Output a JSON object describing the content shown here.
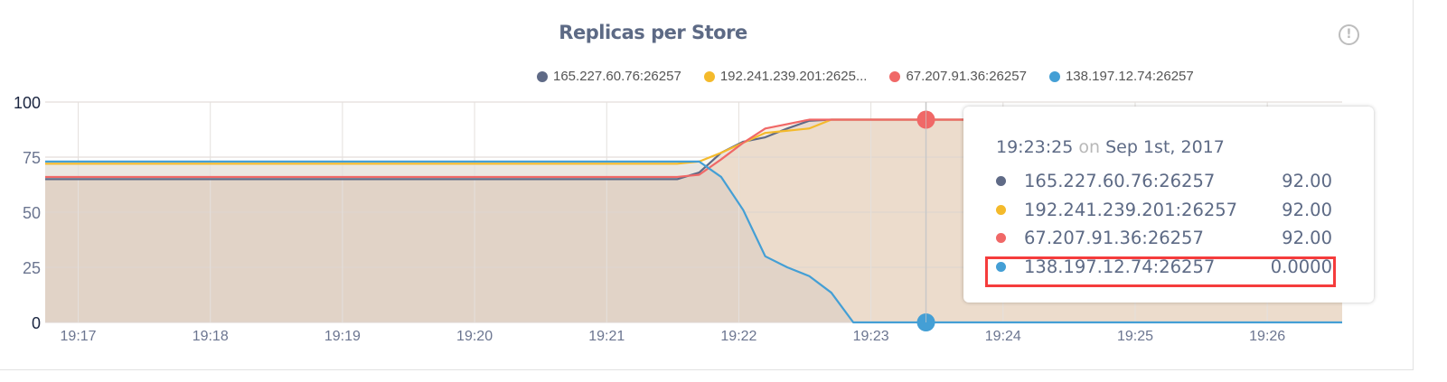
{
  "chart_data": {
    "type": "area",
    "title": "Replicas per Store",
    "xlabel": "",
    "ylabel": "",
    "xlim": [
      "19:16:45",
      "19:26:34"
    ],
    "ylim": [
      0,
      100
    ],
    "yticks": [
      "0",
      "25",
      "50",
      "75",
      "100"
    ],
    "xticks": [
      "19:17",
      "19:18",
      "19:19",
      "19:20",
      "19:21",
      "19:22",
      "19:23",
      "19:24",
      "19:25",
      "19:26"
    ],
    "grid": true,
    "legend_position": "top-right",
    "x": [
      "19:16:45",
      "19:21:32",
      "19:21:42",
      "19:21:52",
      "19:22:02",
      "19:22:12",
      "19:22:22",
      "19:22:32",
      "19:22:42",
      "19:22:52",
      "19:26:34"
    ],
    "series": [
      {
        "name": "165.227.60.76:26257",
        "legend_label": "165.227.60.76:26257",
        "color": "#5f6a86",
        "values": [
          65,
          65,
          68,
          77,
          82,
          84,
          88,
          91.5,
          92,
          92,
          92
        ]
      },
      {
        "name": "192.241.239.201:26257",
        "legend_label": "192.241.239.201:2625...",
        "color": "#f4ba2b",
        "values": [
          72,
          72,
          73,
          77,
          81.5,
          86,
          87,
          88,
          92,
          92,
          92
        ]
      },
      {
        "name": "67.207.91.36:26257",
        "legend_label": "67.207.91.36:26257",
        "color": "#f06867",
        "values": [
          66,
          66,
          67,
          74,
          81.5,
          88,
          90,
          92,
          92,
          92,
          92
        ]
      },
      {
        "name": "138.197.12.74:26257",
        "legend_label": "138.197.12.74:26257",
        "color": "#449fd5",
        "values": [
          73,
          73,
          73,
          66,
          51,
          30,
          25,
          21,
          13.5,
          0,
          0
        ]
      }
    ],
    "hover": {
      "time": "19:23:25",
      "on": "on",
      "date": "Sep 1st, 2017",
      "rows": [
        {
          "name": "165.227.60.76:26257",
          "value": "92.00"
        },
        {
          "name": "192.241.239.201:26257",
          "value": "92.00"
        },
        {
          "name": "67.207.91.36:26257",
          "value": "92.00"
        },
        {
          "name": "138.197.12.74:26257",
          "value": "0.0000"
        }
      ],
      "highlighted_row": 3,
      "highlight_color": "#f53c3c"
    }
  },
  "info_icon": "exclamation-circle-icon",
  "info_glyph": "!"
}
